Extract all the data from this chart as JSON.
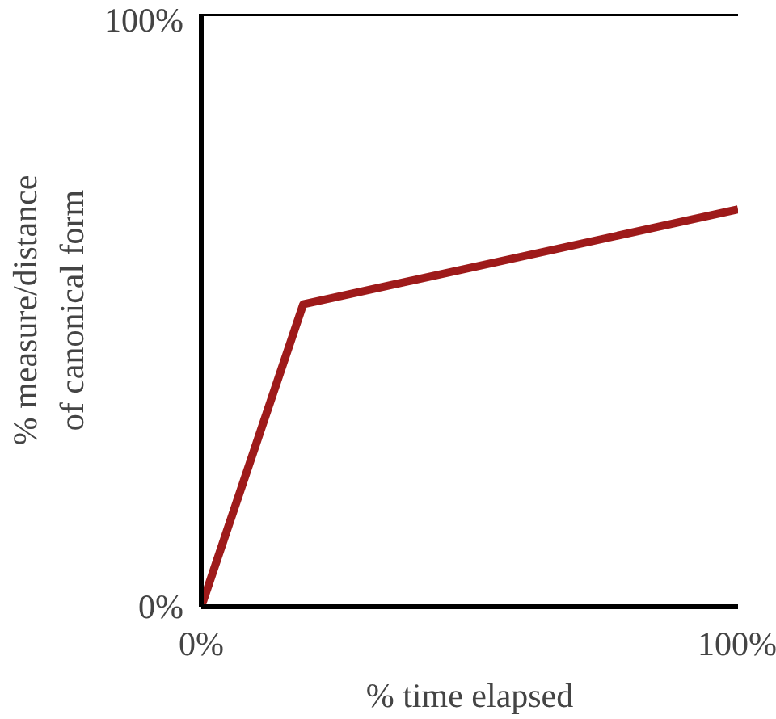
{
  "chart_data": {
    "type": "line",
    "xlabel": "% time elapsed",
    "ylabel": "% measure/distance\nof canonical form",
    "x": [
      0,
      19,
      100
    ],
    "series": [
      {
        "color": "#9e1a1a",
        "values": [
          0,
          51,
          67
        ]
      }
    ],
    "xlim": [
      0,
      100
    ],
    "ylim": [
      0,
      100
    ],
    "xticks": [
      {
        "value": 0,
        "label": "0%"
      },
      {
        "value": 100,
        "label": "100%"
      }
    ],
    "yticks": [
      {
        "value": 0,
        "label": "0%"
      },
      {
        "value": 100,
        "label": "100%"
      }
    ],
    "marker": "none",
    "line_style": "solid"
  }
}
